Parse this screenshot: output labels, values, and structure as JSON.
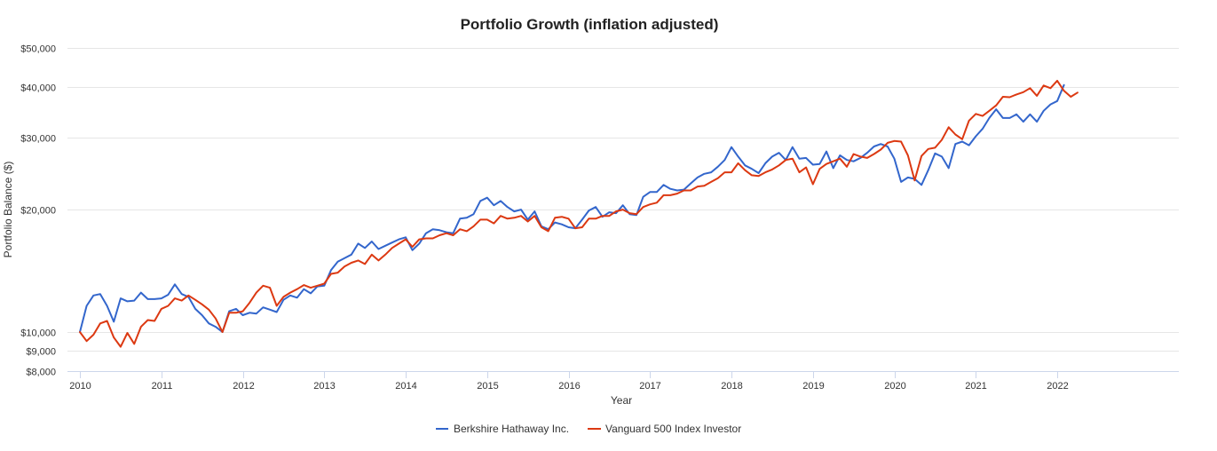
{
  "chart_data": {
    "type": "line",
    "title": "Portfolio Growth (inflation adjusted)",
    "xlabel": "Year",
    "ylabel": "Portfolio Balance ($)",
    "y_scale": "log",
    "ylim": [
      8000,
      50000
    ],
    "xlim": [
      2010.0,
      2022.36
    ],
    "yticks": [
      {
        "value": 8000,
        "label": "$8,000"
      },
      {
        "value": 9000,
        "label": "$9,000"
      },
      {
        "value": 10000,
        "label": "$10,000"
      },
      {
        "value": 20000,
        "label": "$20,000"
      },
      {
        "value": 30000,
        "label": "$30,000"
      },
      {
        "value": 40000,
        "label": "$40,000"
      },
      {
        "value": 50000,
        "label": "$50,000"
      }
    ],
    "xticks": [
      {
        "value": 2010,
        "label": "2010"
      },
      {
        "value": 2011,
        "label": "2011"
      },
      {
        "value": 2012,
        "label": "2012"
      },
      {
        "value": 2013,
        "label": "2013"
      },
      {
        "value": 2014,
        "label": "2014"
      },
      {
        "value": 2015,
        "label": "2015"
      },
      {
        "value": 2016,
        "label": "2016"
      },
      {
        "value": 2017,
        "label": "2017"
      },
      {
        "value": 2018,
        "label": "2018"
      },
      {
        "value": 2019,
        "label": "2019"
      },
      {
        "value": 2020,
        "label": "2020"
      },
      {
        "value": 2021,
        "label": "2021"
      },
      {
        "value": 2022,
        "label": "2022"
      }
    ],
    "grid": true,
    "legend_position": "bottom-center",
    "x_start": 2010.0,
    "x_step_months": 1,
    "series": [
      {
        "name": "Berkshire Hathaway Inc.",
        "color": "#3366cc",
        "values": [
          10000,
          11600,
          12300,
          12400,
          11600,
          10600,
          12100,
          11900,
          11950,
          12500,
          12050,
          12050,
          12100,
          12350,
          13100,
          12400,
          12200,
          11400,
          11000,
          10500,
          10300,
          10000,
          11250,
          11400,
          11000,
          11150,
          11100,
          11500,
          11350,
          11200,
          12000,
          12300,
          12150,
          12750,
          12450,
          12950,
          13000,
          14200,
          14900,
          15200,
          15500,
          16500,
          16100,
          16700,
          16000,
          16300,
          16600,
          16900,
          17100,
          15900,
          16500,
          17500,
          17900,
          17800,
          17600,
          17500,
          19000,
          19100,
          19500,
          21000,
          21400,
          20500,
          21000,
          20300,
          19800,
          20000,
          18900,
          19800,
          18200,
          17900,
          18600,
          18400,
          18100,
          18000,
          18900,
          19900,
          20300,
          19200,
          19700,
          19600,
          20500,
          19500,
          19400,
          21500,
          22100,
          22100,
          23000,
          22500,
          22300,
          22400,
          23200,
          24000,
          24500,
          24700,
          25500,
          26500,
          28500,
          27000,
          25700,
          25200,
          24600,
          26000,
          27000,
          27600,
          26500,
          28500,
          26700,
          26800,
          25800,
          25900,
          27800,
          25300,
          27200,
          26500,
          26300,
          26800,
          27600,
          28600,
          29000,
          28600,
          26700,
          23400,
          24000,
          23800,
          23000,
          25000,
          27500,
          27000,
          25300,
          29000,
          29400,
          28800,
          30300,
          31600,
          33600,
          35300,
          33600,
          33600,
          34300,
          32900,
          34300,
          32900,
          35000,
          36300,
          37000,
          40500
        ],
        "x_offset_months": 0
      },
      {
        "name": "Vanguard 500 Index Investor",
        "color": "#dc3912",
        "values": [
          10000,
          9500,
          9850,
          10500,
          10650,
          9700,
          9200,
          9950,
          9350,
          10300,
          10700,
          10650,
          11400,
          11600,
          12100,
          11950,
          12300,
          12000,
          11700,
          11350,
          10800,
          10000,
          11150,
          11150,
          11250,
          11800,
          12500,
          13000,
          12850,
          11600,
          12200,
          12500,
          12750,
          13050,
          12850,
          13000,
          13150,
          13900,
          14000,
          14500,
          14800,
          15000,
          14700,
          15500,
          15000,
          15500,
          16100,
          16500,
          16900,
          16200,
          16900,
          17000,
          17000,
          17300,
          17500,
          17300,
          17900,
          17700,
          18200,
          18900,
          18900,
          18500,
          19300,
          19000,
          19100,
          19300,
          18700,
          19300,
          18100,
          17700,
          19100,
          19200,
          19000,
          18000,
          18100,
          19000,
          19000,
          19300,
          19300,
          19800,
          20000,
          19600,
          19500,
          20300,
          20600,
          20800,
          21700,
          21700,
          21900,
          22300,
          22300,
          22800,
          22900,
          23400,
          23900,
          24700,
          24700,
          26000,
          25000,
          24300,
          24200,
          24700,
          25100,
          25700,
          26500,
          26700,
          24700,
          25400,
          23100,
          25200,
          25900,
          26300,
          26700,
          25500,
          27400,
          27000,
          26800,
          27400,
          28100,
          29200,
          29500,
          29400,
          27200,
          23600,
          27100,
          28200,
          28400,
          29700,
          31900,
          30600,
          29800,
          33100,
          34400,
          34000,
          35000,
          36100,
          37900,
          37800,
          38400,
          38900,
          39800,
          38100,
          40400,
          39800,
          41500,
          39200,
          37900,
          38800
        ],
        "x_offset_months": 0
      }
    ]
  }
}
